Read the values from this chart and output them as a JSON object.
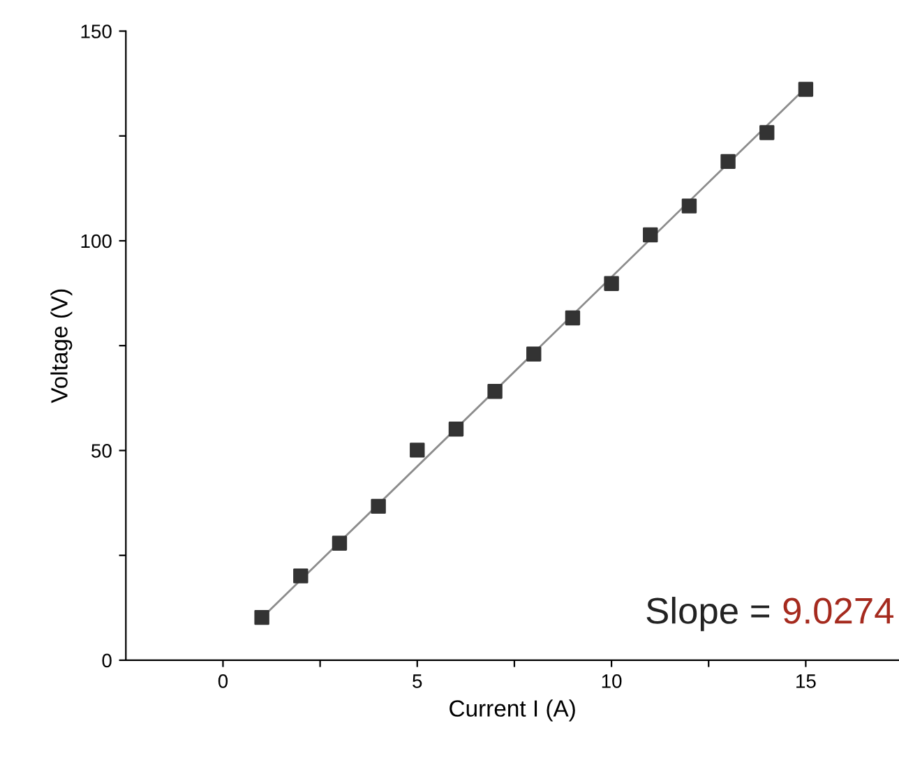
{
  "chart_data": {
    "type": "scatter",
    "xlabel": "Current I (A)",
    "ylabel": "Voltage (V)",
    "xlim": [
      -2.5,
      17.4
    ],
    "xticks": [
      {
        "value": 0,
        "label": "0"
      },
      {
        "value": 2.5,
        "label": null
      },
      {
        "value": 5,
        "label": "5"
      },
      {
        "value": 7.5,
        "label": null
      },
      {
        "value": 10,
        "label": "10"
      },
      {
        "value": 12.5,
        "label": null
      },
      {
        "value": 15,
        "label": "15"
      }
    ],
    "ylim": [
      0,
      150
    ],
    "yticks": [
      0,
      {
        "value": 25,
        "label": null
      },
      50,
      {
        "value": 75,
        "label": null
      },
      100,
      {
        "value": 125,
        "label": null
      },
      150
    ],
    "x": [
      1,
      2,
      3,
      4,
      5,
      6,
      7,
      8,
      9,
      10,
      11,
      12,
      13,
      14,
      15
    ],
    "series": [
      {
        "color": "#333333",
        "marker": "square",
        "values": [
          10.2,
          20.1,
          27.9,
          36.7,
          50.1,
          55.1,
          64.1,
          73.0,
          81.6,
          89.8,
          101.4,
          108.3,
          118.9,
          125.8,
          136.1
        ]
      },
      {
        "type": "line",
        "color": "#8c8c8c",
        "marker": "none",
        "x": [
          1,
          15
        ],
        "values": [
          10.1,
          136.5
        ]
      }
    ],
    "annotations": [
      "Slope =",
      "9.0274"
    ],
    "grid": false,
    "legend": false
  }
}
